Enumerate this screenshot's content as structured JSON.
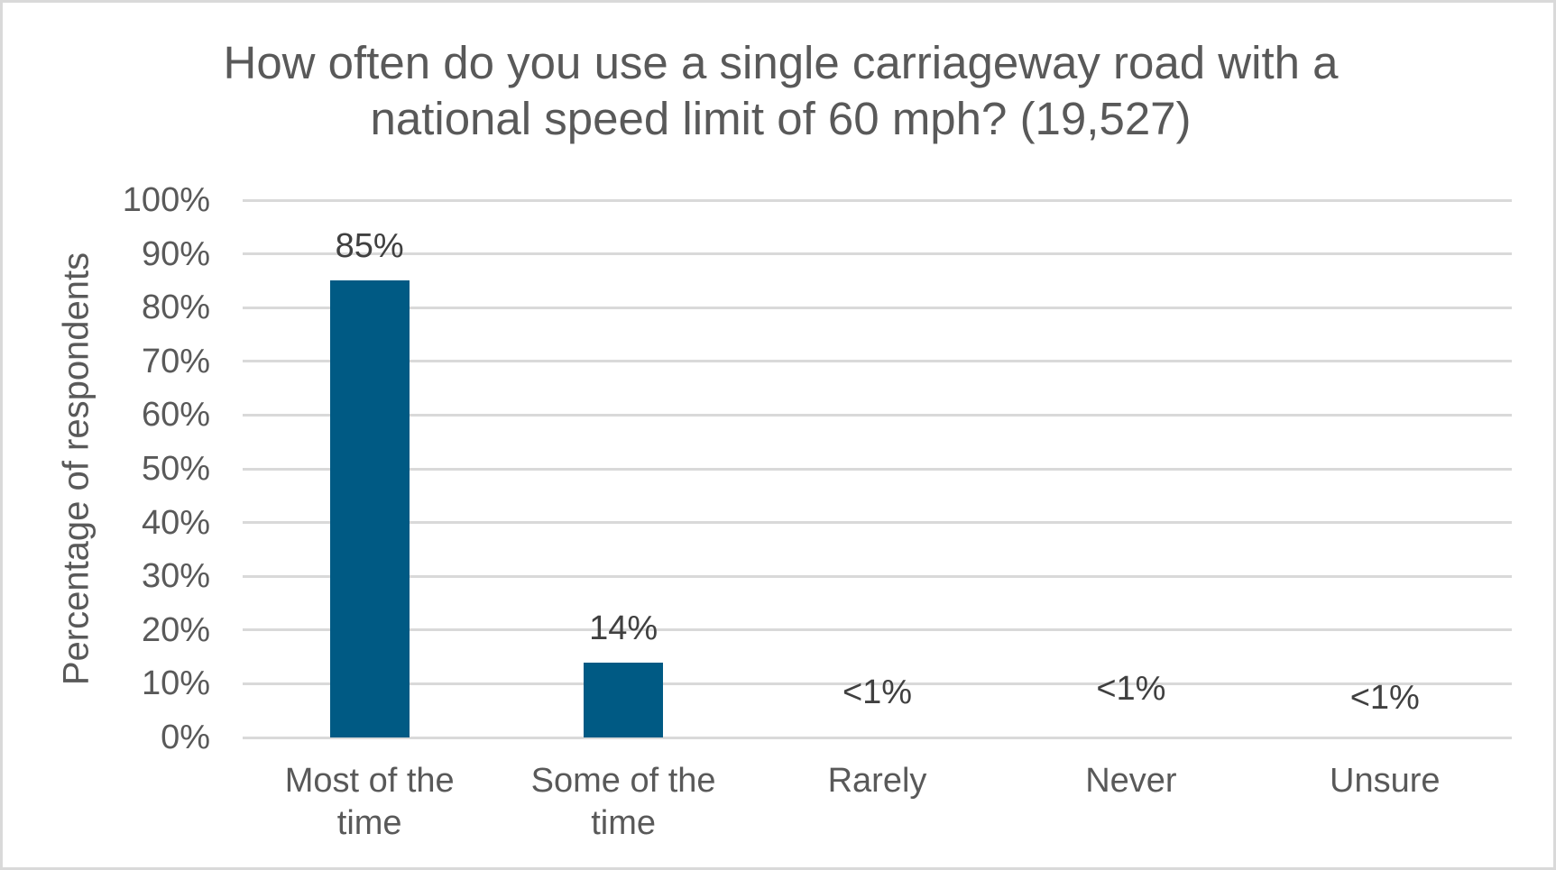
{
  "chart_data": {
    "type": "bar",
    "title_line1": "How often do you use a single carriageway road with a",
    "title_line2": "national speed limit of 60 mph? (19,527)",
    "title": "How often do you use a single carriageway road with a national speed limit of 60 mph? (19,527)",
    "xlabel": "",
    "ylabel": "Percentage of respondents",
    "ylim": [
      0,
      100
    ],
    "y_ticks": [
      "0%",
      "10%",
      "20%",
      "30%",
      "40%",
      "50%",
      "60%",
      "70%",
      "80%",
      "90%",
      "100%"
    ],
    "categories": [
      "Most of the time",
      "Some of the time",
      "Rarely",
      "Never",
      "Unsure"
    ],
    "category_lines": [
      [
        "Most of the",
        "time"
      ],
      [
        "Some of the",
        "time"
      ],
      [
        "Rarely",
        ""
      ],
      [
        "Never",
        ""
      ],
      [
        "Unsure",
        ""
      ]
    ],
    "values": [
      85,
      14,
      0.4,
      0.4,
      0.4
    ],
    "data_labels": [
      "85%",
      "14%",
      "<1%",
      "<1%",
      "<1%"
    ],
    "grid": true,
    "legend": "none",
    "bar_color": "#005A84",
    "gridline_color": "#D9D9D9"
  }
}
